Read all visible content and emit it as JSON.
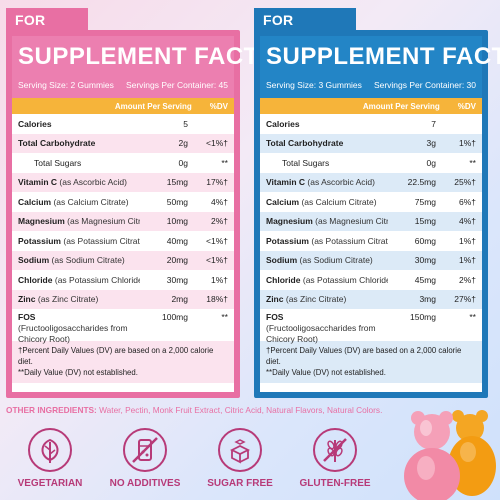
{
  "kids": {
    "tag": "FOR KIDS",
    "title": "SUPPLEMENT FACTS",
    "serving_size": "Serving Size: 2 Gummies",
    "servings_per": "Servings Per Container: 45",
    "amount_header": "Amount Per Serving",
    "dv_header": "%DV",
    "rows": [
      {
        "name": "Calories",
        "detail": "",
        "amount": "5",
        "dv": ""
      },
      {
        "name": "Total Carbohydrate",
        "detail": "",
        "amount": "2g",
        "dv": "<1%†"
      },
      {
        "name": "Total Sugars",
        "detail": "",
        "amount": "0g",
        "dv": "**"
      },
      {
        "name": "Vitamin C",
        "detail": "(as Ascorbic Acid)",
        "amount": "15mg",
        "dv": "17%†"
      },
      {
        "name": "Calcium",
        "detail": "(as Calcium Citrate)",
        "amount": "50mg",
        "dv": "4%†"
      },
      {
        "name": "Magnesium",
        "detail": "(as Magnesium Citrate)",
        "amount": "10mg",
        "dv": "2%†"
      },
      {
        "name": "Potassium",
        "detail": "(as Potassium Citrate)",
        "amount": "40mg",
        "dv": "<1%†"
      },
      {
        "name": "Sodium",
        "detail": "(as Sodium Citrate)",
        "amount": "20mg",
        "dv": "<1%†"
      },
      {
        "name": "Chloride",
        "detail": "(as Potassium Chloride)",
        "amount": "30mg",
        "dv": "1%†"
      },
      {
        "name": "Zinc",
        "detail": "(as Zinc Citrate)",
        "amount": "2mg",
        "dv": "18%†"
      }
    ],
    "fos": {
      "name": "FOS",
      "detail": "(Fructooligosaccharides from Chicory Root)",
      "amount": "100mg",
      "dv": "**"
    },
    "foot1": "†Percent Daily Values (DV) are based on a 2,000 calorie diet.",
    "foot2": "**Daily Value (DV) not established."
  },
  "adults": {
    "tag": "FOR ADULTS",
    "title": "SUPPLEMENT FACTS",
    "serving_size": "Serving Size: 3 Gummies",
    "servings_per": "Servings Per Container: 30",
    "amount_header": "Amount Per Serving",
    "dv_header": "%DV",
    "rows": [
      {
        "name": "Calories",
        "detail": "",
        "amount": "7",
        "dv": ""
      },
      {
        "name": "Total Carbohydrate",
        "detail": "",
        "amount": "3g",
        "dv": "1%†"
      },
      {
        "name": "Total Sugars",
        "detail": "",
        "amount": "0g",
        "dv": "**"
      },
      {
        "name": "Vitamin C",
        "detail": "(as Ascorbic Acid)",
        "amount": "22.5mg",
        "dv": "25%†"
      },
      {
        "name": "Calcium",
        "detail": "(as Calcium Citrate)",
        "amount": "75mg",
        "dv": "6%†"
      },
      {
        "name": "Magnesium",
        "detail": "(as Magnesium Citrate)",
        "amount": "15mg",
        "dv": "4%†"
      },
      {
        "name": "Potassium",
        "detail": "(as Potassium Citrate)",
        "amount": "60mg",
        "dv": "1%†"
      },
      {
        "name": "Sodium",
        "detail": "(as Sodium Citrate)",
        "amount": "30mg",
        "dv": "1%†"
      },
      {
        "name": "Chloride",
        "detail": "(as Potassium Chloride)",
        "amount": "45mg",
        "dv": "2%†"
      },
      {
        "name": "Zinc",
        "detail": "(as Zinc Citrate)",
        "amount": "3mg",
        "dv": "27%†"
      }
    ],
    "fos": {
      "name": "FOS",
      "detail": "(Fructooligosaccharides from Chicory Root)",
      "amount": "150mg",
      "dv": "**"
    },
    "foot1": "†Percent Daily Values (DV) are based on a 2,000 calorie diet.",
    "foot2": "**Daily Value (DV) not established."
  },
  "other_ingredients": {
    "label": "OTHER INGREDIENTS:",
    "text": "Water, Pectin, Monk Fruit Extract, Citric Acid, Natural Flavors, Natural Colors."
  },
  "badges": [
    {
      "label": "VEGETARIAN",
      "icon": "leaf-icon"
    },
    {
      "label": "NO ADDITIVES",
      "icon": "no-additives-icon"
    },
    {
      "label": "SUGAR FREE",
      "icon": "sugar-cubes-icon"
    },
    {
      "label": "GLUTEN-FREE",
      "icon": "wheat-crossed-icon"
    }
  ],
  "colors": {
    "kids_accent": "#e86fa3",
    "adults_accent": "#1f78b8",
    "amount_bar": "#f6b43a",
    "badge": "#b73a78"
  }
}
